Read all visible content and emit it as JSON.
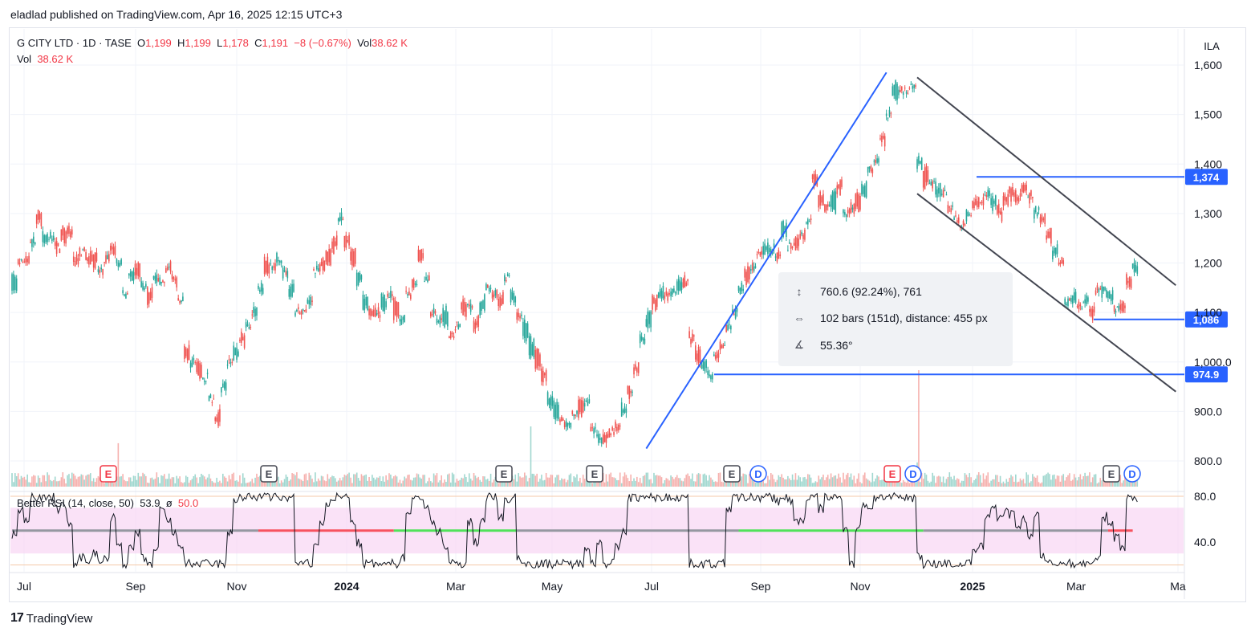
{
  "header": "eladlad published on TradingView.com, Apr 16, 2025 12:15 UTC+3",
  "legend": {
    "symbol": "G CITY LTD · 1D · TASE",
    "o_label": "O",
    "o": "1,199",
    "h_label": "H",
    "h": "1,199",
    "l_label": "L",
    "l": "1,178",
    "c_label": "C",
    "c": "1,191",
    "change": "−8 (−0.67%)",
    "vol_label": "Vol",
    "vol": "38.62 K"
  },
  "currency": "ILA",
  "rsi_legend": {
    "name": "Better RSI (14, close, 50)",
    "value": "53.9",
    "sep": "ø",
    "mid": "50.0"
  },
  "tooltip": {
    "range": "760.6 (92.24%), 761",
    "bars": "102 bars (151d), distance: 455 px",
    "angle": "55.36°"
  },
  "footer": {
    "brand": "TradingView",
    "logo": "17"
  },
  "colors": {
    "up": "#26a69a",
    "down": "#ef5350",
    "line": "#2962ff",
    "channel": "#434651",
    "rsi_band": "#f8d6f3"
  },
  "chart_data": {
    "type": "candlestick",
    "symbol": "G CITY LTD",
    "interval": "1D",
    "exchange": "TASE",
    "currency": "ILA",
    "price_axis": {
      "ticks": [
        "1,600",
        "1,500",
        "1,400",
        "1,300",
        "1,200",
        "1,100",
        "1,000.0",
        "900.0",
        "800.0"
      ],
      "ylim": [
        770,
        1620
      ]
    },
    "x_axis": {
      "ticks": [
        "Jul",
        "Sep",
        "Nov",
        "2024",
        "Mar",
        "May",
        "Jul",
        "Sep",
        "Nov",
        "2025",
        "Mar",
        "Ma"
      ]
    },
    "price_path": [
      [
        0,
        1160
      ],
      [
        2,
        1210
      ],
      [
        4,
        1290
      ],
      [
        5,
        1250
      ],
      [
        7,
        1230
      ],
      [
        9,
        1270
      ],
      [
        10,
        1215
      ],
      [
        12,
        1200
      ],
      [
        14,
        1200
      ],
      [
        16,
        1230
      ],
      [
        18,
        1150
      ],
      [
        20,
        1180
      ],
      [
        22,
        1140
      ],
      [
        24,
        1175
      ],
      [
        25,
        1190
      ],
      [
        27,
        1110
      ],
      [
        28,
        1025
      ],
      [
        30,
        995
      ],
      [
        32,
        920
      ],
      [
        33,
        890
      ],
      [
        35,
        990
      ],
      [
        37,
        1040
      ],
      [
        39,
        1090
      ],
      [
        41,
        1195
      ],
      [
        43,
        1210
      ],
      [
        45,
        1150
      ],
      [
        47,
        1090
      ],
      [
        49,
        1170
      ],
      [
        50,
        1200
      ],
      [
        52,
        1235
      ],
      [
        53,
        1300
      ],
      [
        55,
        1210
      ],
      [
        57,
        1120
      ],
      [
        59,
        1095
      ],
      [
        61,
        1130
      ],
      [
        63,
        1090
      ],
      [
        65,
        1160
      ],
      [
        66,
        1220
      ],
      [
        68,
        1100
      ],
      [
        70,
        1095
      ],
      [
        71,
        1060
      ],
      [
        73,
        1110
      ],
      [
        75,
        1080
      ],
      [
        77,
        1150
      ],
      [
        79,
        1120
      ],
      [
        80,
        1165
      ],
      [
        82,
        1100
      ],
      [
        83,
        1060
      ],
      [
        85,
        1000
      ],
      [
        87,
        930
      ],
      [
        89,
        880
      ],
      [
        91,
        900
      ],
      [
        93,
        905
      ],
      [
        94,
        870
      ],
      [
        95,
        860
      ],
      [
        96,
        835
      ],
      [
        98,
        870
      ],
      [
        101,
        990
      ],
      [
        103,
        1090
      ],
      [
        105,
        1150
      ],
      [
        107,
        1130
      ],
      [
        109,
        1160
      ],
      [
        110,
        1050
      ],
      [
        111,
        1010
      ],
      [
        113,
        990
      ],
      [
        114,
        1000
      ],
      [
        116,
        1060
      ],
      [
        118,
        1150
      ],
      [
        120,
        1190
      ],
      [
        122,
        1230
      ],
      [
        124,
        1200
      ],
      [
        125,
        1270
      ],
      [
        127,
        1230
      ],
      [
        129,
        1300
      ],
      [
        130,
        1360
      ],
      [
        132,
        1310
      ],
      [
        134,
        1340
      ],
      [
        136,
        1300
      ],
      [
        138,
        1350
      ],
      [
        140,
        1400
      ],
      [
        141,
        1450
      ],
      [
        142,
        1510
      ],
      [
        143,
        1550
      ],
      [
        145,
        1540
      ],
      [
        146,
        1560
      ],
      [
        147,
        1390
      ],
      [
        148,
        1370
      ],
      [
        150,
        1340
      ],
      [
        152,
        1310
      ],
      [
        154,
        1270
      ],
      [
        156,
        1320
      ],
      [
        158,
        1340
      ],
      [
        160,
        1310
      ],
      [
        162,
        1340
      ],
      [
        164,
        1350
      ],
      [
        166,
        1300
      ],
      [
        168,
        1260
      ],
      [
        170,
        1200
      ],
      [
        171,
        1140
      ],
      [
        173,
        1130
      ],
      [
        175,
        1110
      ],
      [
        176,
        1150
      ],
      [
        178,
        1130
      ],
      [
        179,
        1100
      ],
      [
        180,
        1120
      ],
      [
        181,
        1170
      ],
      [
        182,
        1190
      ]
    ],
    "volume_peaks": {
      "max_label_near": "Dec 2024"
    },
    "earnings_markers": [
      {
        "label": "E",
        "color": "red",
        "date": "Aug"
      },
      {
        "label": "E",
        "color": "gray",
        "date": "Nov"
      },
      {
        "label": "E",
        "color": "gray",
        "date": "Mar"
      },
      {
        "label": "E",
        "color": "gray",
        "date": "May"
      },
      {
        "label": "E",
        "color": "gray",
        "date": "Sep"
      },
      {
        "label": "D",
        "color": "blue",
        "date": "Sep"
      },
      {
        "label": "E",
        "color": "red",
        "date": "Dec"
      },
      {
        "label": "D",
        "color": "blue",
        "date": "Dec"
      },
      {
        "label": "E",
        "color": "gray",
        "date": "Apr"
      },
      {
        "label": "D",
        "color": "blue",
        "date": "Apr"
      }
    ],
    "horizontal_levels": [
      {
        "label": "1,374",
        "value": 1374
      },
      {
        "label": "1,086",
        "value": 1086
      },
      {
        "label": "974.9",
        "value": 974.9
      }
    ],
    "trendline_rise": {
      "from": [
        103,
        825
      ],
      "to": [
        142,
        1585
      ]
    },
    "channel": {
      "upper": {
        "from": [
          147,
          1575
        ],
        "to": [
          189,
          1155
        ]
      },
      "lower": {
        "from": [
          147,
          1340
        ],
        "to": [
          189,
          940
        ]
      }
    },
    "rsi": {
      "axis_ticks": [
        "80.0",
        "40.0"
      ],
      "ylim": [
        20,
        85
      ],
      "band": [
        30,
        70
      ],
      "mid": 50
    }
  }
}
